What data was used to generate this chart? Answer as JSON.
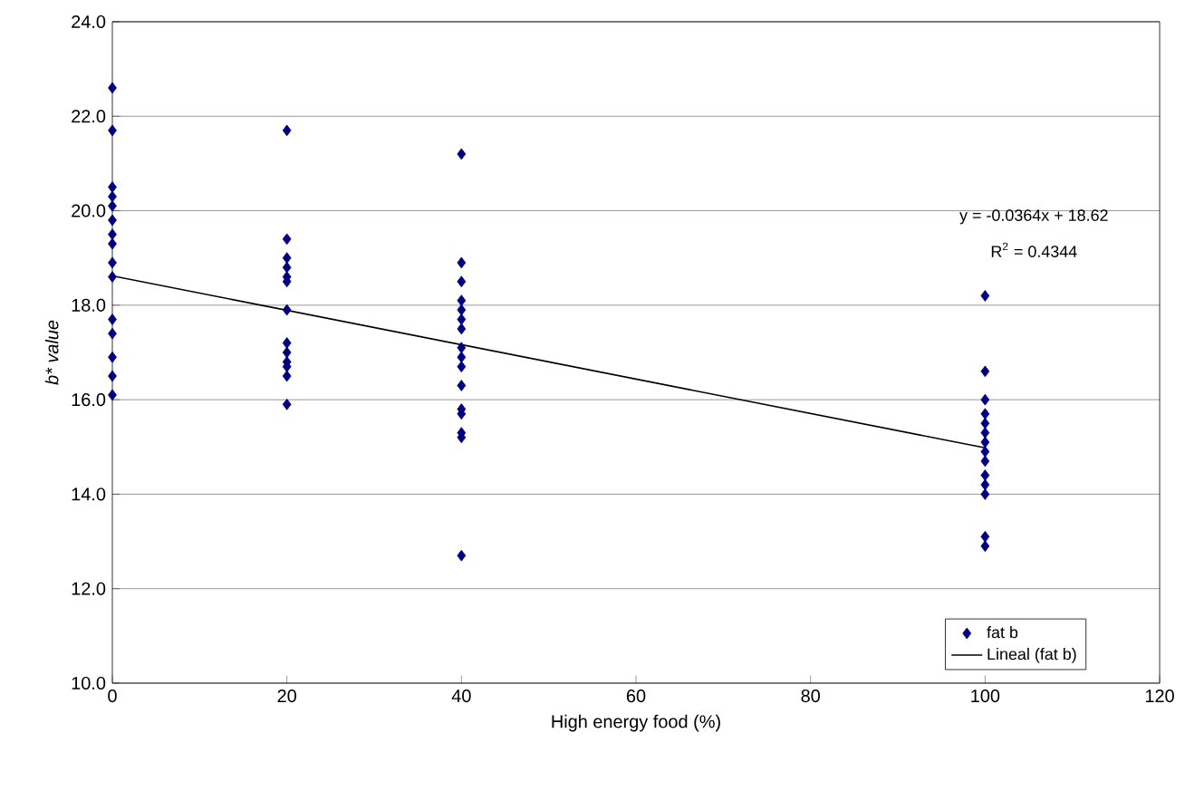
{
  "chart_data": {
    "type": "scatter",
    "xlabel": "High energy food (%)",
    "ylabel": "b* value",
    "xlim": [
      0,
      120
    ],
    "xticks": [
      0,
      20,
      40,
      60,
      80,
      100,
      120
    ],
    "ylim": [
      10,
      24
    ],
    "yticks": [
      {
        "value": 10,
        "label": "10.0"
      },
      {
        "value": 12,
        "label": "12.0"
      },
      {
        "value": 14,
        "label": "14.0"
      },
      {
        "value": 16,
        "label": "16.0"
      },
      {
        "value": 18,
        "label": "18.0"
      },
      {
        "value": 20,
        "label": "20.0"
      },
      {
        "value": 22,
        "label": "22.0"
      },
      {
        "value": 24,
        "label": "24.0"
      }
    ],
    "grid": "y",
    "legend": "bottom right",
    "annotations": [
      "y = -0.0364x + 18.62",
      "R$^{2}$ = 0.4344"
    ],
    "series": [
      {
        "name": "fat b",
        "color": "#000080",
        "marker": "diamond",
        "x": [
          0,
          0,
          0,
          0,
          0,
          0,
          0,
          0,
          0,
          0,
          0,
          0,
          0,
          0,
          0,
          20,
          20,
          20,
          20,
          20,
          20,
          20,
          20,
          20,
          20,
          20,
          20,
          20,
          40,
          40,
          40,
          40,
          40,
          40,
          40,
          40,
          40,
          40,
          40,
          40,
          40,
          40,
          40,
          40,
          100,
          100,
          100,
          100,
          100,
          100,
          100,
          100,
          100,
          100,
          100,
          100,
          100,
          100
        ],
        "values": [
          22.6,
          21.7,
          20.5,
          20.3,
          20.1,
          19.8,
          19.5,
          19.3,
          18.9,
          18.6,
          17.7,
          17.4,
          16.9,
          16.5,
          16.1,
          21.7,
          19.4,
          19.0,
          18.8,
          18.6,
          18.5,
          17.9,
          17.2,
          17.0,
          16.8,
          16.7,
          16.5,
          15.9,
          21.2,
          18.9,
          18.5,
          18.1,
          17.9,
          17.7,
          17.5,
          17.1,
          16.9,
          16.7,
          16.3,
          15.8,
          15.7,
          15.3,
          15.2,
          12.7,
          18.2,
          16.6,
          16.0,
          15.7,
          15.5,
          15.3,
          15.1,
          14.9,
          14.7,
          14.4,
          14.2,
          14.0,
          13.1,
          12.9
        ]
      },
      {
        "name": "Lineal (fat b)",
        "type": "line",
        "color": "#000000",
        "marker": "none",
        "line_style": "solid",
        "x": [
          0,
          100
        ],
        "values": [
          18.62,
          14.98
        ]
      }
    ]
  }
}
